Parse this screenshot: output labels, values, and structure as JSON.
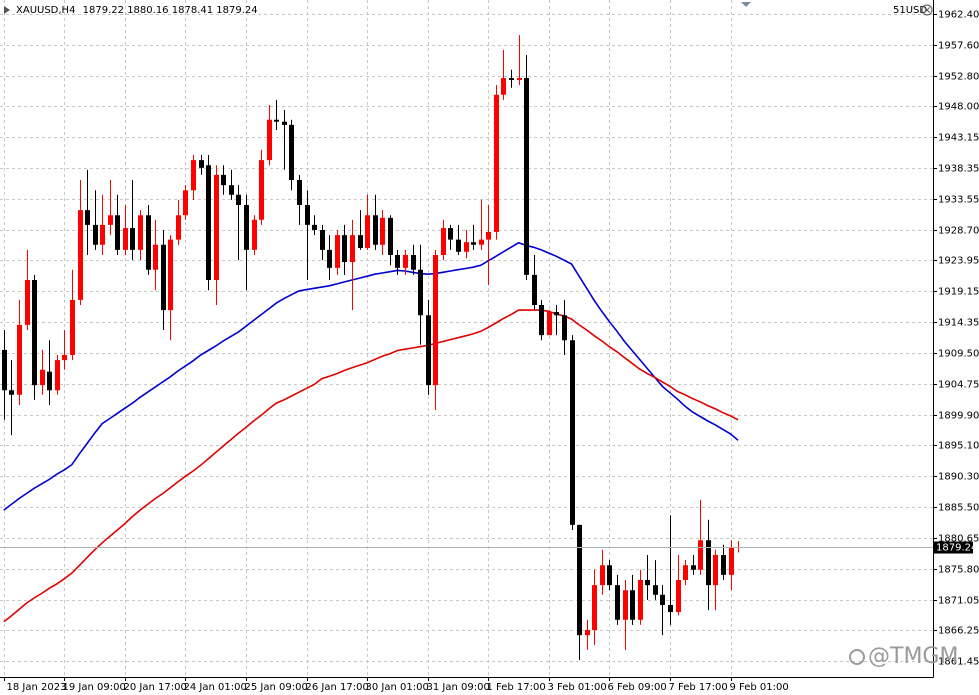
{
  "chart_data": {
    "type": "candlestick",
    "symbol": "XAUUSD,H4",
    "corner_label": "51USD",
    "watermark": "@TMGM",
    "up_color": "#ff0000",
    "down_color": "#000000",
    "grid": true,
    "ylim": [
      1858.97,
      1964.58
    ],
    "yticks": [
      {
        "value": 1962.4,
        "label": "1962.40"
      },
      {
        "value": 1957.6,
        "label": "1957.60"
      },
      {
        "value": 1952.8,
        "label": "1952.80"
      },
      {
        "value": 1948.0,
        "label": "1948.00"
      },
      1943.15,
      1938.35,
      1933.55,
      {
        "value": 1928.7,
        "label": "1928.70"
      },
      1923.95,
      1919.15,
      1914.35,
      {
        "value": 1909.5,
        "label": "1909.50"
      },
      1904.75,
      {
        "value": 1899.9,
        "label": "1899.90"
      },
      {
        "value": 1895.1,
        "label": "1895.10"
      },
      {
        "value": 1890.3,
        "label": "1890.30"
      },
      {
        "value": 1885.5,
        "label": "1885.50"
      },
      1880.65,
      {
        "value": 1875.8,
        "label": "1875.80"
      },
      1871.05,
      1866.25,
      1861.45
    ],
    "categories": [
      "18 Jan 2023",
      null,
      null,
      null,
      null,
      null,
      null,
      null,
      "19 Jan 09:00",
      null,
      null,
      null,
      null,
      null,
      null,
      null,
      "20 Jan 17:00",
      null,
      null,
      null,
      null,
      null,
      null,
      null,
      "24 Jan 01:00",
      null,
      null,
      null,
      null,
      null,
      null,
      null,
      "25 Jan 09:00",
      null,
      null,
      null,
      null,
      null,
      null,
      null,
      "26 Jan 17:00",
      null,
      null,
      null,
      null,
      null,
      null,
      null,
      "30 Jan 01:00",
      null,
      null,
      null,
      null,
      null,
      null,
      null,
      "31 Jan 09:00",
      null,
      null,
      null,
      null,
      null,
      null,
      null,
      "1 Feb 17:00",
      null,
      null,
      null,
      null,
      null,
      null,
      null,
      "3 Feb 01:00",
      null,
      null,
      null,
      null,
      null,
      null,
      null,
      "6 Feb 09:00",
      null,
      null,
      null,
      null,
      null,
      null,
      null,
      "7 Feb 17:00",
      null,
      null,
      null,
      null,
      null,
      null,
      null,
      "9 Feb 01:00",
      null
    ],
    "open": [
      1910.0,
      1903.7,
      1903.0,
      1913.9,
      1920.9,
      1904.5,
      1906.6,
      1903.7,
      1908.4,
      1909.2,
      1917.8,
      1931.8,
      1929.5,
      1926.4,
      1929.5,
      1931.0,
      1925.6,
      1929.0,
      1925.6,
      1931.0,
      1922.5,
      1926.4,
      1916.2,
      1927.2,
      1931.0,
      1934.9,
      1939.6,
      1938.8,
      1920.9,
      1937.3,
      1935.7,
      1934.2,
      1932.6,
      1925.6,
      1930.3,
      1939.6,
      1945.9,
      1945.6,
      1945.1,
      1936.5,
      1932.6,
      1929.5,
      1928.7,
      1925.6,
      1922.8,
      1927.9,
      1923.7,
      1927.9,
      1925.9,
      1931.0,
      1926.4,
      1930.6,
      1924.8,
      1922.8,
      1924.8,
      1922.5,
      1915.4,
      1904.5,
      1924.8,
      1929.0,
      1927.2,
      1925.3,
      1926.8,
      1926.4,
      1927.2,
      1928.4,
      1949.8,
      1952.4,
      1952.1,
      1952.4,
      1921.7,
      1917.0,
      1912.3,
      1915.9,
      1915.4,
      1911.5,
      1882.7,
      1865.5,
      1866.3,
      1873.3,
      1876.4,
      1873.3,
      1867.9,
      1872.5,
      1867.9,
      1874.1,
      1873.3,
      1871.8,
      1870.2,
      1869.1,
      1874.1,
      1876.4,
      1875.7,
      1880.3,
      1873.3,
      1878.0,
      1874.9,
      1879.22
    ],
    "high": [
      1913.1,
      1908.4,
      1917.8,
      1925.6,
      1921.7,
      1910.0,
      1911.5,
      1909.2,
      1913.1,
      1922.5,
      1936.5,
      1938.1,
      1934.9,
      1934.2,
      1936.5,
      1934.2,
      1932.6,
      1936.5,
      1931.8,
      1932.6,
      1930.3,
      1928.7,
      1927.9,
      1933.4,
      1935.7,
      1940.4,
      1940.4,
      1940.4,
      1938.8,
      1938.8,
      1938.1,
      1935.7,
      1934.2,
      1931.0,
      1941.2,
      1948.2,
      1949.0,
      1947.4,
      1945.9,
      1937.3,
      1934.9,
      1931.0,
      1929.5,
      1927.9,
      1928.7,
      1929.5,
      1930.3,
      1931.8,
      1934.2,
      1934.2,
      1931.8,
      1931.0,
      1925.6,
      1925.6,
      1926.4,
      1926.4,
      1917.8,
      1925.6,
      1930.3,
      1929.5,
      1929.5,
      1928.7,
      1929.5,
      1933.4,
      1932.6,
      1951.3,
      1956.8,
      1953.7,
      1959.1,
      1956.0,
      1924.8,
      1917.8,
      1916.2,
      1917.0,
      1917.8,
      1912.3,
      1882.7,
      1867.9,
      1875.7,
      1878.8,
      1877.2,
      1874.9,
      1874.1,
      1874.9,
      1875.7,
      1878.0,
      1877.2,
      1873.3,
      1884.2,
      1878.0,
      1877.2,
      1878.0,
      1886.6,
      1883.5,
      1878.8,
      1879.6,
      1880.3,
      1880.16
    ],
    "low": [
      1899.1,
      1896.7,
      1901.4,
      1913.1,
      1902.2,
      1903.0,
      1901.4,
      1903.0,
      1906.9,
      1908.4,
      1917.0,
      1924.8,
      1925.6,
      1924.8,
      1927.9,
      1924.8,
      1924.8,
      1924.0,
      1924.0,
      1921.7,
      1919.3,
      1913.1,
      1911.5,
      1926.4,
      1930.3,
      1933.4,
      1937.3,
      1919.3,
      1917.0,
      1934.2,
      1933.4,
      1924.0,
      1919.3,
      1924.8,
      1929.5,
      1938.8,
      1944.3,
      1938.1,
      1934.9,
      1929.5,
      1920.9,
      1927.9,
      1924.0,
      1920.9,
      1921.7,
      1921.7,
      1916.2,
      1925.6,
      1925.6,
      1925.6,
      1924.8,
      1923.2,
      1921.7,
      1921.7,
      1921.7,
      1910.8,
      1903.0,
      1900.6,
      1924.0,
      1925.6,
      1924.8,
      1924.3,
      1925.6,
      1925.6,
      1920.1,
      1927.2,
      1949.0,
      1950.9,
      1951.3,
      1920.9,
      1916.2,
      1911.5,
      1912.3,
      1912.3,
      1909.2,
      1881.9,
      1861.6,
      1863.2,
      1864.0,
      1871.8,
      1872.5,
      1867.1,
      1863.2,
      1867.1,
      1867.1,
      1871.0,
      1871.0,
      1865.5,
      1867.1,
      1868.6,
      1873.3,
      1874.9,
      1874.9,
      1869.4,
      1869.4,
      1874.1,
      1872.5,
      1878.41
    ],
    "close": [
      1903.7,
      1903.0,
      1913.9,
      1920.9,
      1904.5,
      1906.9,
      1903.7,
      1908.4,
      1909.2,
      1917.8,
      1931.8,
      1929.5,
      1926.4,
      1929.5,
      1931.0,
      1925.6,
      1929.0,
      1925.6,
      1931.0,
      1922.5,
      1926.4,
      1916.2,
      1927.2,
      1931.0,
      1934.9,
      1939.6,
      1938.4,
      1920.9,
      1937.3,
      1935.7,
      1934.2,
      1932.6,
      1925.6,
      1930.3,
      1939.6,
      1945.9,
      1945.6,
      1945.1,
      1936.5,
      1932.6,
      1929.5,
      1928.7,
      1925.6,
      1922.8,
      1927.9,
      1923.7,
      1927.9,
      1925.9,
      1931.0,
      1926.4,
      1930.6,
      1924.8,
      1922.8,
      1924.8,
      1922.5,
      1915.4,
      1904.5,
      1924.8,
      1929.0,
      1927.2,
      1925.3,
      1926.8,
      1926.4,
      1927.2,
      1928.4,
      1949.8,
      1952.4,
      1952.1,
      1952.4,
      1921.7,
      1917.0,
      1912.3,
      1915.9,
      1915.4,
      1911.5,
      1882.7,
      1865.5,
      1866.3,
      1873.3,
      1876.4,
      1873.3,
      1867.9,
      1872.5,
      1867.9,
      1874.1,
      1873.3,
      1871.8,
      1870.2,
      1869.1,
      1874.1,
      1876.4,
      1875.7,
      1880.3,
      1873.3,
      1878.0,
      1874.9,
      1879.1,
      1879.24
    ],
    "overlays": [
      {
        "color": "#0000d0",
        "values": [
          1885.0,
          1885.9,
          1886.8,
          1887.6,
          1888.4,
          1889.1,
          1889.8,
          1890.6,
          1891.3,
          1892.1,
          1893.8,
          1895.4,
          1897.0,
          1898.5,
          1899.3,
          1900.1,
          1900.9,
          1901.7,
          1902.6,
          1903.4,
          1904.2,
          1905.0,
          1905.8,
          1906.7,
          1907.5,
          1908.3,
          1909.2,
          1909.9,
          1910.6,
          1911.4,
          1912.1,
          1912.8,
          1913.7,
          1914.6,
          1915.5,
          1916.4,
          1917.3,
          1918.0,
          1918.6,
          1919.2,
          1919.4,
          1919.6,
          1919.8,
          1920.0,
          1920.3,
          1920.6,
          1920.9,
          1921.2,
          1921.5,
          1921.8,
          1922.0,
          1922.2,
          1922.4,
          1922.3,
          1922.1,
          1921.9,
          1921.8,
          1921.9,
          1922.1,
          1922.3,
          1922.5,
          1922.7,
          1922.9,
          1923.2,
          1923.9,
          1924.6,
          1925.3,
          1926.0,
          1926.7,
          1926.3,
          1926.0,
          1925.6,
          1925.1,
          1924.6,
          1924.0,
          1923.4,
          1921.5,
          1919.6,
          1917.7,
          1916.0,
          1914.4,
          1912.9,
          1911.3,
          1909.9,
          1908.5,
          1907.1,
          1905.7,
          1904.3,
          1903.3,
          1902.3,
          1901.2,
          1900.3,
          1899.6,
          1898.9,
          1898.3,
          1897.6,
          1896.9,
          1895.9
        ]
      },
      {
        "color": "#e00000",
        "values": [
          1867.6,
          1868.5,
          1869.5,
          1870.5,
          1871.3,
          1872.0,
          1872.8,
          1873.5,
          1874.3,
          1875.2,
          1876.4,
          1877.6,
          1878.8,
          1879.9,
          1880.9,
          1881.9,
          1882.9,
          1884.0,
          1885.0,
          1885.9,
          1886.8,
          1887.6,
          1888.5,
          1889.4,
          1890.3,
          1891.1,
          1892.0,
          1893.0,
          1894.0,
          1895.0,
          1896.0,
          1897.0,
          1897.9,
          1898.9,
          1899.8,
          1900.8,
          1901.7,
          1902.2,
          1902.8,
          1903.4,
          1904.0,
          1904.6,
          1905.5,
          1905.9,
          1906.3,
          1906.8,
          1907.2,
          1907.6,
          1908.0,
          1908.5,
          1909.0,
          1909.4,
          1909.9,
          1910.1,
          1910.3,
          1910.5,
          1910.7,
          1911.0,
          1911.3,
          1911.6,
          1911.9,
          1912.2,
          1912.5,
          1912.9,
          1913.5,
          1914.2,
          1914.9,
          1915.5,
          1916.2,
          1916.2,
          1916.2,
          1916.2,
          1916.0,
          1915.6,
          1915.3,
          1914.8,
          1913.9,
          1913.1,
          1912.2,
          1911.4,
          1910.5,
          1909.7,
          1908.8,
          1907.9,
          1907.0,
          1906.3,
          1905.7,
          1905.0,
          1904.3,
          1903.5,
          1903.0,
          1902.4,
          1901.9,
          1901.3,
          1900.8,
          1900.2,
          1899.7,
          1899.1
        ]
      }
    ]
  }
}
